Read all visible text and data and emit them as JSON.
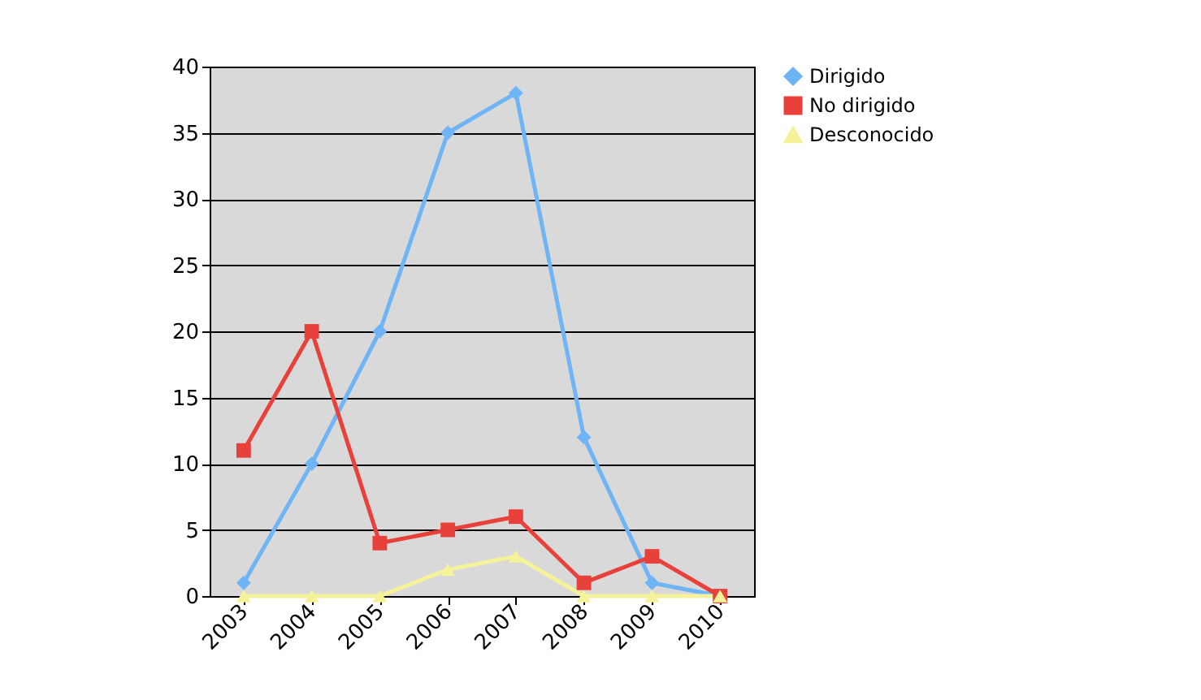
{
  "chart_data": {
    "type": "line",
    "categories": [
      "2003",
      "2004",
      "2005",
      "2006",
      "2007",
      "2008",
      "2009",
      "2010"
    ],
    "series": [
      {
        "name": "Dirigido",
        "color": "#6fb4f5",
        "marker": "diamond",
        "values": [
          1,
          10,
          20,
          35,
          38,
          12,
          1,
          0
        ]
      },
      {
        "name": "No dirigido",
        "color": "#e8413b",
        "marker": "square",
        "values": [
          11,
          20,
          4,
          5,
          6,
          1,
          3,
          0
        ]
      },
      {
        "name": "Desconocido",
        "color": "#f6f29a",
        "marker": "triangle",
        "values": [
          0,
          0,
          0,
          2,
          3,
          0,
          0,
          0
        ]
      }
    ],
    "ylim": [
      0,
      40
    ],
    "yticks": [
      0,
      5,
      10,
      15,
      20,
      25,
      30,
      35,
      40
    ],
    "grid": "y",
    "legend": "right"
  }
}
